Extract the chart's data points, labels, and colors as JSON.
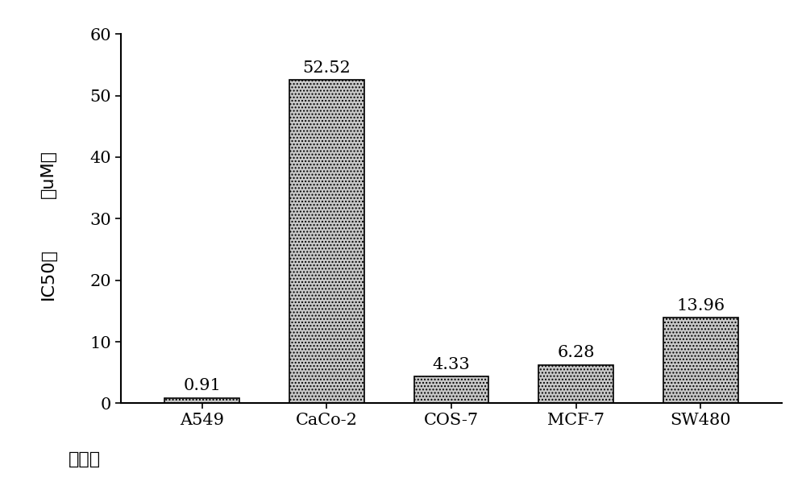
{
  "categories": [
    "A549",
    "CaCo-2",
    "COS-7",
    "MCF-7",
    "SW480"
  ],
  "values": [
    0.91,
    52.52,
    4.33,
    6.28,
    13.96
  ],
  "bar_color": "#c8c8c8",
  "bar_edgecolor": "#000000",
  "bar_hatch": "....",
  "xlabel_cn": "细胞系",
  "ylabel_line1": "IC50値",
  "ylabel_line2": "（uM）",
  "ylim": [
    0,
    60
  ],
  "yticks": [
    0,
    10,
    20,
    30,
    40,
    50,
    60
  ],
  "value_labels": [
    "0.91",
    "52.52",
    "4.33",
    "6.28",
    "13.96"
  ],
  "label_fontsize": 16,
  "tick_fontsize": 15,
  "value_fontsize": 15,
  "bar_width": 0.6,
  "background_color": "#ffffff"
}
